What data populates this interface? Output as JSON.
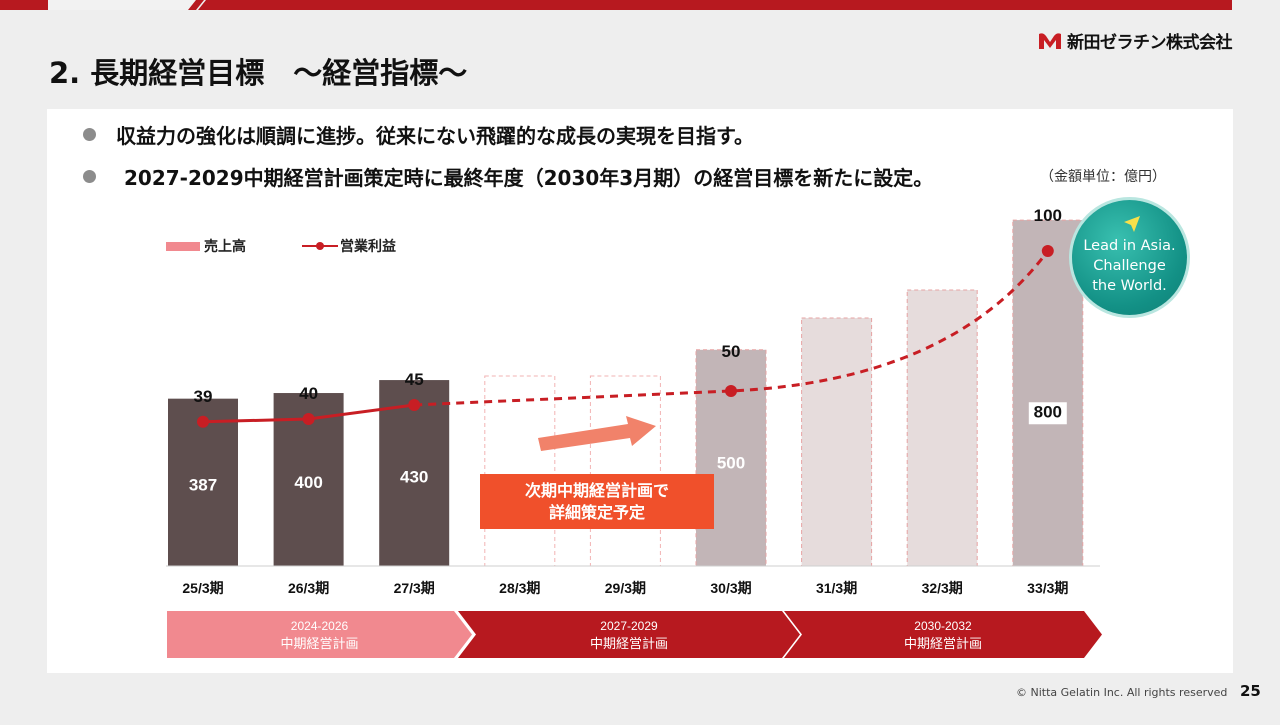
{
  "page_title": "2. 長期経営目標　～経営指標～",
  "company_name": "新田ゼラチン株式会社",
  "bullets": [
    "収益力の強化は順調に進捗。従来にない飛躍的な成長の実現を目指す。",
    "2027-2029中期経営計画策定時に最終年度（2030年3月期）の経営目標を新たに設定。"
  ],
  "unit_note": "（金額単位：億円）",
  "badge_lines": "Lead in Asia.\nChallenge\nthe World.",
  "plan_note": [
    "次期中期経営計画で",
    "詳細策定予定"
  ],
  "footer": "© Nitta Gelatin Inc. All rights reserved",
  "page_number": "25",
  "colors": {
    "brand_red": "#b7191f",
    "sales_actual": "#5e4e4e",
    "sales_target": "#c2b5b7",
    "sales_future": "#e6dcdc",
    "profit_line": "#c81e24",
    "highlight": "#f0502b",
    "badge_teal": "#139186"
  },
  "chart_data": {
    "type": "bar",
    "categories": [
      "25/3期",
      "26/3期",
      "27/3期",
      "28/3期",
      "29/3期",
      "30/3期",
      "31/3期",
      "32/3期",
      "33/3期"
    ],
    "series": [
      {
        "name": "売上高",
        "type": "bar",
        "values": [
          387,
          400,
          430,
          null,
          null,
          500,
          null,
          null,
          800
        ],
        "value_labels": [
          "387",
          "400",
          "430",
          "",
          "",
          "500",
          "",
          "",
          "800"
        ],
        "status": [
          "actual",
          "actual",
          "actual",
          "placeholder",
          "placeholder",
          "target",
          "future",
          "future",
          "target"
        ]
      },
      {
        "name": "営業利益",
        "type": "line",
        "values": [
          39,
          40,
          45,
          null,
          null,
          50,
          null,
          null,
          100
        ],
        "value_labels": [
          "39",
          "40",
          "45",
          "",
          "",
          "50",
          "",
          "",
          "100"
        ],
        "line_style": "solid to 27/3期, dashed thereafter"
      }
    ],
    "legend": [
      "売上高",
      "営業利益"
    ],
    "legend_position": "top-left",
    "grid": false,
    "periods": [
      {
        "years": "2024-2026",
        "label": "中期経営計画"
      },
      {
        "years": "2027-2029",
        "label": "中期経営計画"
      },
      {
        "years": "2030-2032",
        "label": "中期経営計画"
      }
    ]
  }
}
